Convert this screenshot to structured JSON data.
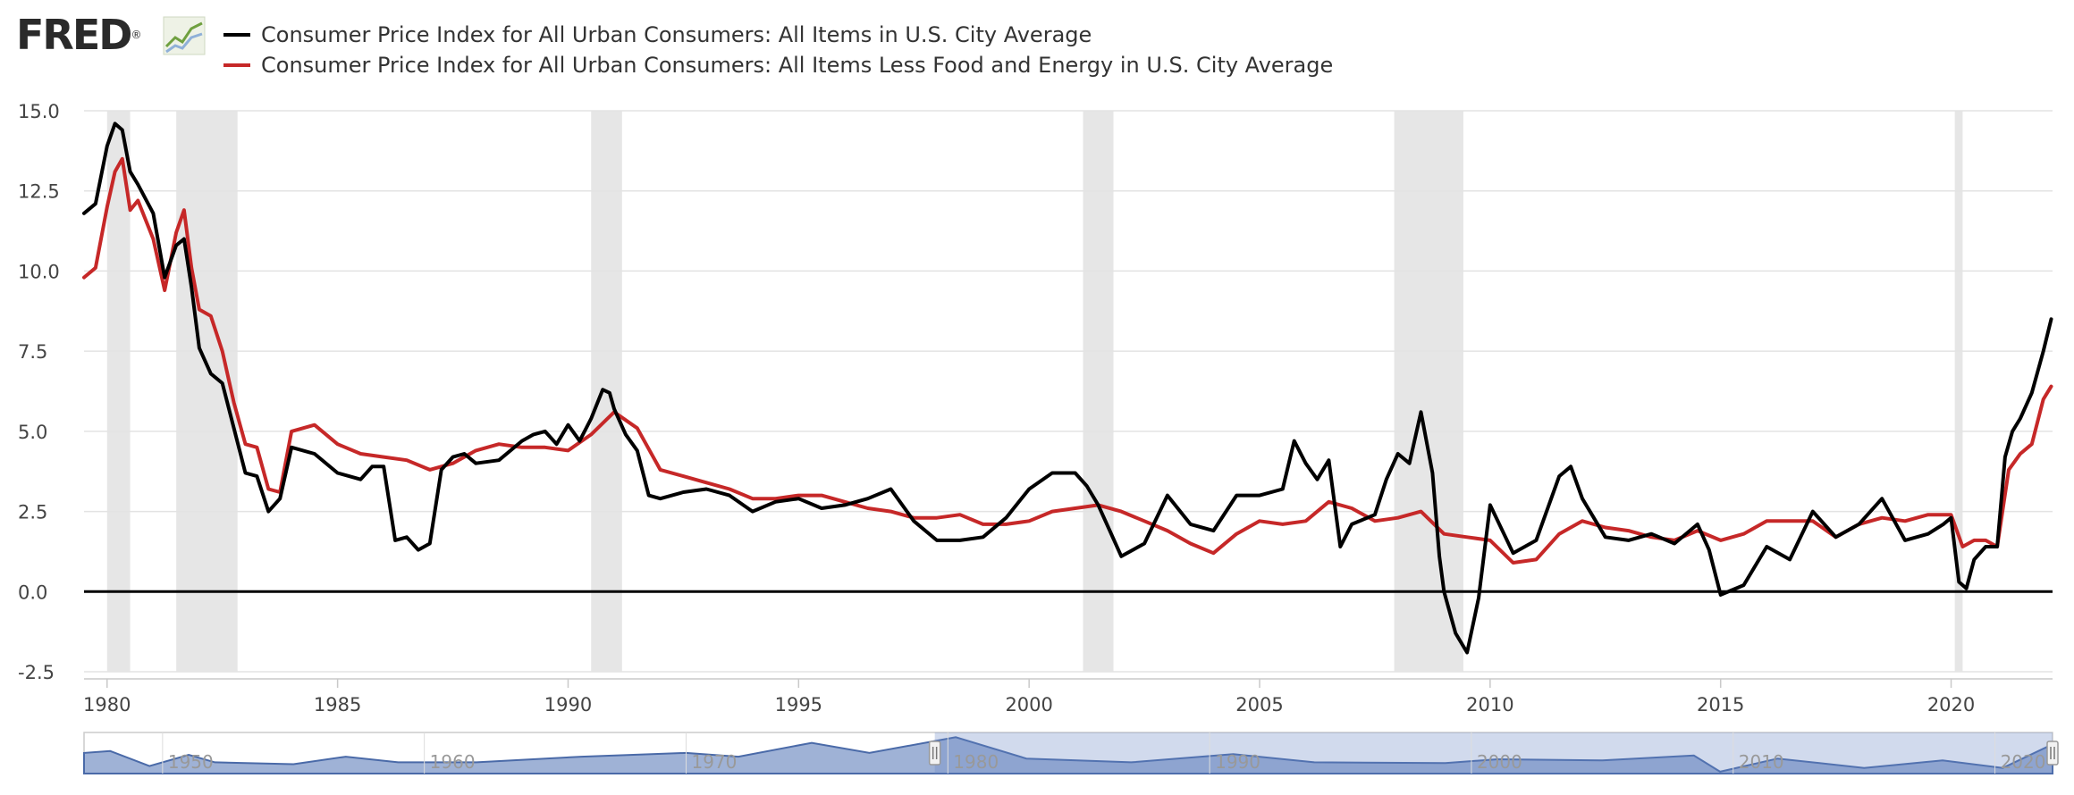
{
  "header": {
    "logo_text": "FRED",
    "logo_registered": "®"
  },
  "legend": [
    {
      "label": "Consumer Price Index for All Urban Consumers: All Items in U.S. City Average",
      "color": "#000000"
    },
    {
      "label": "Consumer Price Index for All Urban Consumers: All Items Less Food and Energy in U.S. City Average",
      "color": "#c62828"
    }
  ],
  "navigator": {
    "labels": [
      "1950",
      "1960",
      "1970",
      "1980",
      "1990",
      "2000",
      "2010",
      "2020"
    ],
    "selection": [
      1979.5,
      2022.2
    ],
    "fill_color": "#9fb2d6",
    "line_color": "#4a6aa8"
  },
  "chart_data": {
    "type": "line",
    "title": "",
    "xlabel": "",
    "ylabel": "",
    "xlim": [
      1979.5,
      2022.2
    ],
    "ylim": [
      -2.5,
      15.0
    ],
    "yticks": [
      "15.0",
      "12.5",
      "10.0",
      "7.5",
      "5.0",
      "2.5",
      "0.0",
      "-2.5"
    ],
    "xticks": [
      "1980",
      "1985",
      "1990",
      "1995",
      "2000",
      "2005",
      "2010",
      "2015",
      "2020"
    ],
    "grid": true,
    "legend_position": "top",
    "recessions": [
      [
        1980.0,
        1980.5
      ],
      [
        1981.5,
        1982.83
      ],
      [
        1990.5,
        1991.17
      ],
      [
        2001.17,
        2001.83
      ],
      [
        2007.92,
        2009.42
      ],
      [
        2020.08,
        2020.25
      ]
    ],
    "series": [
      {
        "name": "Consumer Price Index for All Urban Consumers: All Items in U.S. City Average",
        "color": "#000000",
        "x": [
          1979.5,
          1979.75,
          1980.0,
          1980.17,
          1980.33,
          1980.5,
          1980.67,
          1981.0,
          1981.25,
          1981.5,
          1981.67,
          1981.83,
          1982.0,
          1982.25,
          1982.5,
          1982.75,
          1983.0,
          1983.25,
          1983.5,
          1983.75,
          1984.0,
          1984.5,
          1985.0,
          1985.25,
          1985.5,
          1985.75,
          1986.0,
          1986.25,
          1986.5,
          1986.75,
          1987.0,
          1987.25,
          1987.5,
          1987.75,
          1988.0,
          1988.5,
          1989.0,
          1989.25,
          1989.5,
          1989.75,
          1990.0,
          1990.25,
          1990.5,
          1990.75,
          1990.9,
          1991.0,
          1991.25,
          1991.5,
          1991.75,
          1992.0,
          1992.5,
          1993.0,
          1993.5,
          1994.0,
          1994.5,
          1995.0,
          1995.5,
          1996.0,
          1996.5,
          1997.0,
          1997.5,
          1998.0,
          1998.5,
          1999.0,
          1999.5,
          2000.0,
          2000.5,
          2001.0,
          2001.25,
          2001.5,
          2001.75,
          2002.0,
          2002.5,
          2003.0,
          2003.5,
          2004.0,
          2004.5,
          2005.0,
          2005.5,
          2005.75,
          2006.0,
          2006.25,
          2006.5,
          2006.75,
          2007.0,
          2007.5,
          2007.75,
          2008.0,
          2008.25,
          2008.5,
          2008.75,
          2008.9,
          2009.0,
          2009.25,
          2009.5,
          2009.75,
          2010.0,
          2010.5,
          2011.0,
          2011.5,
          2011.75,
          2012.0,
          2012.5,
          2013.0,
          2013.5,
          2014.0,
          2014.5,
          2014.75,
          2015.0,
          2015.5,
          2016.0,
          2016.5,
          2017.0,
          2017.5,
          2018.0,
          2018.5,
          2019.0,
          2019.5,
          2019.83,
          2020.0,
          2020.17,
          2020.33,
          2020.5,
          2020.75,
          2021.0,
          2021.17,
          2021.33,
          2021.5,
          2021.75,
          2022.0,
          2022.17
        ],
        "values": [
          11.8,
          12.1,
          13.9,
          14.6,
          14.4,
          13.1,
          12.7,
          11.8,
          9.8,
          10.8,
          11.0,
          9.5,
          7.6,
          6.8,
          6.5,
          5.1,
          3.7,
          3.6,
          2.5,
          2.9,
          4.5,
          4.3,
          3.7,
          3.6,
          3.5,
          3.9,
          3.9,
          1.6,
          1.7,
          1.3,
          1.5,
          3.8,
          4.2,
          4.3,
          4.0,
          4.1,
          4.7,
          4.9,
          5.0,
          4.6,
          5.2,
          4.7,
          5.4,
          6.3,
          6.2,
          5.7,
          4.9,
          4.4,
          3.0,
          2.9,
          3.1,
          3.2,
          3.0,
          2.5,
          2.8,
          2.9,
          2.6,
          2.7,
          2.9,
          3.2,
          2.2,
          1.6,
          1.6,
          1.7,
          2.3,
          3.2,
          3.7,
          3.7,
          3.3,
          2.7,
          1.9,
          1.1,
          1.5,
          3.0,
          2.1,
          1.9,
          3.0,
          3.0,
          3.2,
          4.7,
          4.0,
          3.5,
          4.1,
          1.4,
          2.1,
          2.4,
          3.5,
          4.3,
          4.0,
          5.6,
          3.7,
          1.1,
          0.0,
          -1.3,
          -1.9,
          -0.2,
          2.7,
          1.2,
          1.6,
          3.6,
          3.9,
          2.9,
          1.7,
          1.6,
          1.8,
          1.5,
          2.1,
          1.3,
          -0.1,
          0.2,
          1.4,
          1.0,
          2.5,
          1.7,
          2.1,
          2.9,
          1.6,
          1.8,
          2.1,
          2.3,
          0.3,
          0.1,
          1.0,
          1.4,
          1.4,
          4.2,
          5.0,
          5.4,
          6.2,
          7.5,
          8.5
        ]
      },
      {
        "name": "Consumer Price Index for All Urban Consumers: All Items Less Food and Energy in U.S. City Average",
        "color": "#c62828",
        "x": [
          1979.5,
          1979.75,
          1980.0,
          1980.17,
          1980.33,
          1980.5,
          1980.67,
          1981.0,
          1981.25,
          1981.5,
          1981.67,
          1981.83,
          1982.0,
          1982.25,
          1982.5,
          1982.75,
          1983.0,
          1983.25,
          1983.5,
          1983.75,
          1984.0,
          1984.5,
          1985.0,
          1985.5,
          1986.0,
          1986.5,
          1987.0,
          1987.5,
          1988.0,
          1988.5,
          1989.0,
          1989.5,
          1990.0,
          1990.5,
          1991.0,
          1991.5,
          1992.0,
          1992.5,
          1993.0,
          1993.5,
          1994.0,
          1994.5,
          1995.0,
          1995.5,
          1996.0,
          1996.5,
          1997.0,
          1997.5,
          1998.0,
          1998.5,
          1999.0,
          1999.5,
          2000.0,
          2000.5,
          2001.0,
          2001.5,
          2002.0,
          2002.5,
          2003.0,
          2003.5,
          2004.0,
          2004.5,
          2005.0,
          2005.5,
          2006.0,
          2006.5,
          2007.0,
          2007.5,
          2008.0,
          2008.5,
          2009.0,
          2009.5,
          2010.0,
          2010.5,
          2011.0,
          2011.5,
          2012.0,
          2012.5,
          2013.0,
          2013.5,
          2014.0,
          2014.5,
          2015.0,
          2015.5,
          2016.0,
          2016.5,
          2017.0,
          2017.5,
          2018.0,
          2018.5,
          2019.0,
          2019.5,
          2020.0,
          2020.25,
          2020.5,
          2020.75,
          2021.0,
          2021.25,
          2021.5,
          2021.75,
          2022.0,
          2022.17
        ],
        "values": [
          9.8,
          10.1,
          12.0,
          13.1,
          13.5,
          11.9,
          12.2,
          11.0,
          9.4,
          11.2,
          11.9,
          10.1,
          8.8,
          8.6,
          7.5,
          5.9,
          4.6,
          4.5,
          3.2,
          3.1,
          5.0,
          5.2,
          4.6,
          4.3,
          4.2,
          4.1,
          3.8,
          4.0,
          4.4,
          4.6,
          4.5,
          4.5,
          4.4,
          4.9,
          5.6,
          5.1,
          3.8,
          3.6,
          3.4,
          3.2,
          2.9,
          2.9,
          3.0,
          3.0,
          2.8,
          2.6,
          2.5,
          2.3,
          2.3,
          2.4,
          2.1,
          2.1,
          2.2,
          2.5,
          2.6,
          2.7,
          2.5,
          2.2,
          1.9,
          1.5,
          1.2,
          1.8,
          2.2,
          2.1,
          2.2,
          2.8,
          2.6,
          2.2,
          2.3,
          2.5,
          1.8,
          1.7,
          1.6,
          0.9,
          1.0,
          1.8,
          2.2,
          2.0,
          1.9,
          1.7,
          1.6,
          1.9,
          1.6,
          1.8,
          2.2,
          2.2,
          2.2,
          1.7,
          2.1,
          2.3,
          2.2,
          2.4,
          2.4,
          1.4,
          1.6,
          1.6,
          1.4,
          3.8,
          4.3,
          4.6,
          6.0,
          6.4
        ]
      }
    ]
  }
}
